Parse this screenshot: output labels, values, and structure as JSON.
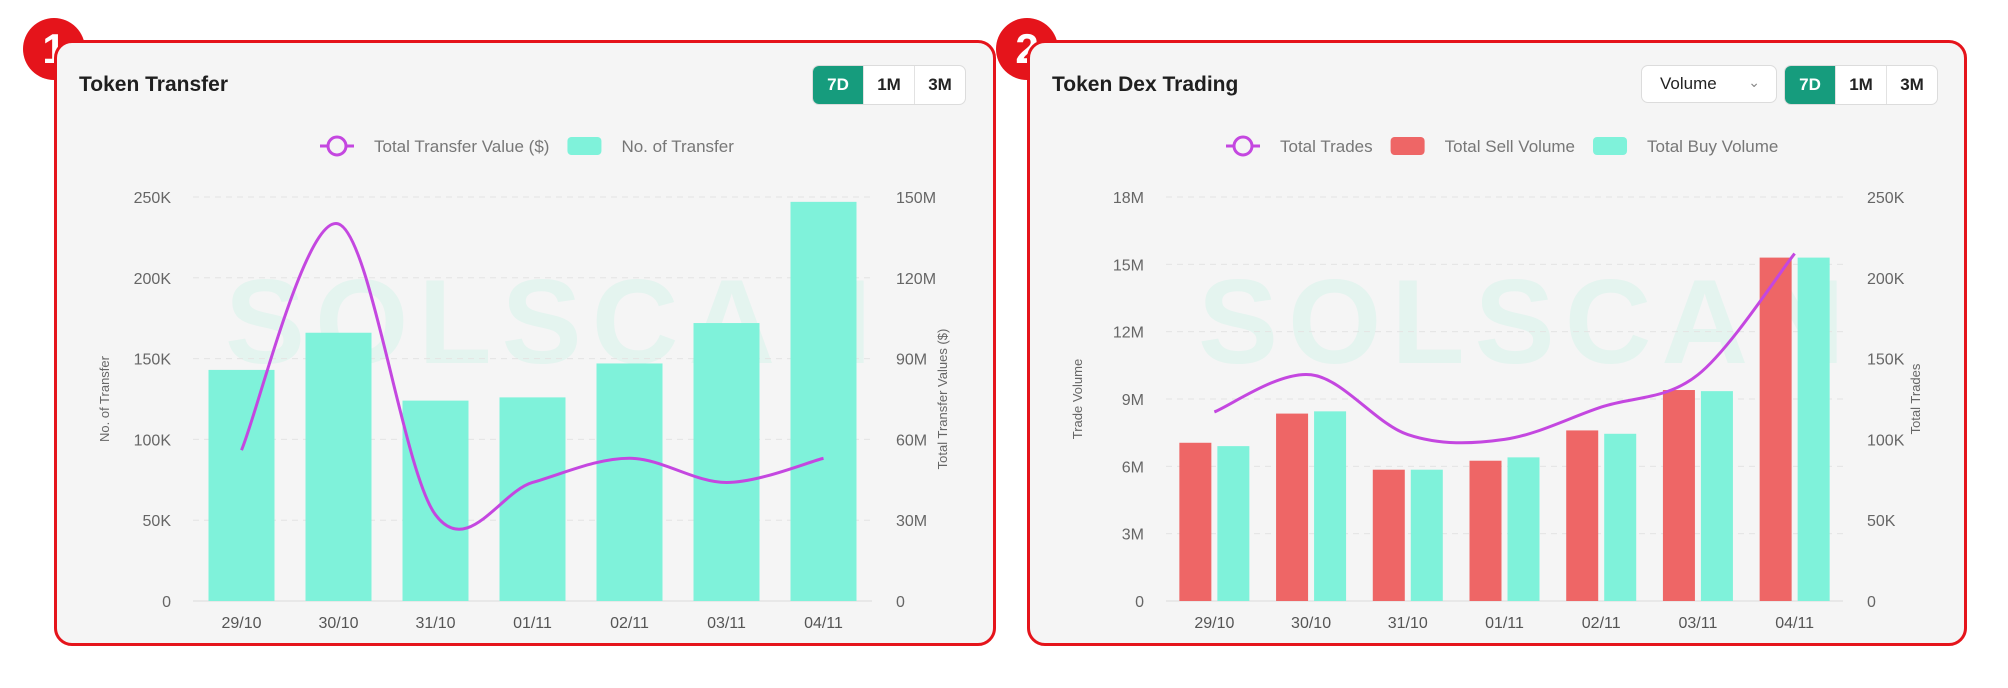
{
  "markers": [
    "1",
    "2"
  ],
  "panels": [
    {
      "title": "Token Transfer",
      "ranges": [
        "7D",
        "1M",
        "3M"
      ],
      "active_range": "7D"
    },
    {
      "title": "Token Dex Trading",
      "dropdown_value": "Volume",
      "ranges": [
        "7D",
        "1M",
        "3M"
      ],
      "active_range": "7D"
    }
  ],
  "watermark": "SOLSCAN",
  "colors": {
    "bar_teal": "#7ff2da",
    "bar_red": "#ee6666",
    "line_purple": "#c447e0",
    "active_button": "#169c7d",
    "border_red": "#e5141b"
  },
  "chart_data": [
    {
      "type": "bar",
      "categories": [
        "29/10",
        "30/10",
        "31/10",
        "01/11",
        "02/11",
        "03/11",
        "04/11"
      ],
      "series": [
        {
          "name": "No. of Transfer",
          "type": "bar",
          "axis": "left",
          "values": [
            143000,
            166000,
            124000,
            126000,
            147000,
            172000,
            247000
          ]
        },
        {
          "name": "Total Transfer Value ($)",
          "type": "line",
          "axis": "right",
          "values": [
            56000000,
            140000000,
            32000000,
            44000000,
            53000000,
            44000000,
            53000000
          ]
        }
      ],
      "left_axis": {
        "label": "No. of Transfer",
        "ticks": [
          "0",
          "50K",
          "100K",
          "150K",
          "200K",
          "250K"
        ],
        "min": 0,
        "max": 250000
      },
      "right_axis": {
        "label": "Total Transfer Values ($)",
        "ticks": [
          "0",
          "30M",
          "60M",
          "90M",
          "120M",
          "150M"
        ],
        "min": 0,
        "max": 150000000
      },
      "legend": [
        "Total Transfer Value ($)",
        "No. of Transfer"
      ],
      "legend_position": "top-center",
      "grid": true
    },
    {
      "type": "bar",
      "categories": [
        "29/10",
        "30/10",
        "31/10",
        "01/11",
        "02/11",
        "03/11",
        "04/11"
      ],
      "series": [
        {
          "name": "Total Sell Volume",
          "type": "bar",
          "axis": "left",
          "values": [
            7050000,
            8350000,
            5850000,
            6250000,
            7600000,
            9400000,
            15300000
          ]
        },
        {
          "name": "Total Buy Volume",
          "type": "bar",
          "axis": "left",
          "values": [
            6900000,
            8450000,
            5850000,
            6400000,
            7450000,
            9350000,
            15300000
          ]
        },
        {
          "name": "Total Trades",
          "type": "line",
          "axis": "right",
          "values": [
            117000,
            140000,
            103000,
            100000,
            120000,
            140000,
            215000
          ]
        }
      ],
      "left_axis": {
        "label": "Trade Volume",
        "ticks": [
          "0",
          "3M",
          "6M",
          "9M",
          "12M",
          "15M",
          "18M"
        ],
        "min": 0,
        "max": 18000000
      },
      "right_axis": {
        "label": "Total Trades",
        "ticks": [
          "0",
          "50K",
          "100K",
          "150K",
          "200K",
          "250K"
        ],
        "min": 0,
        "max": 250000
      },
      "legend": [
        "Total Trades",
        "Total Sell Volume",
        "Total Buy Volume"
      ],
      "legend_position": "top-center",
      "grid": true
    }
  ]
}
